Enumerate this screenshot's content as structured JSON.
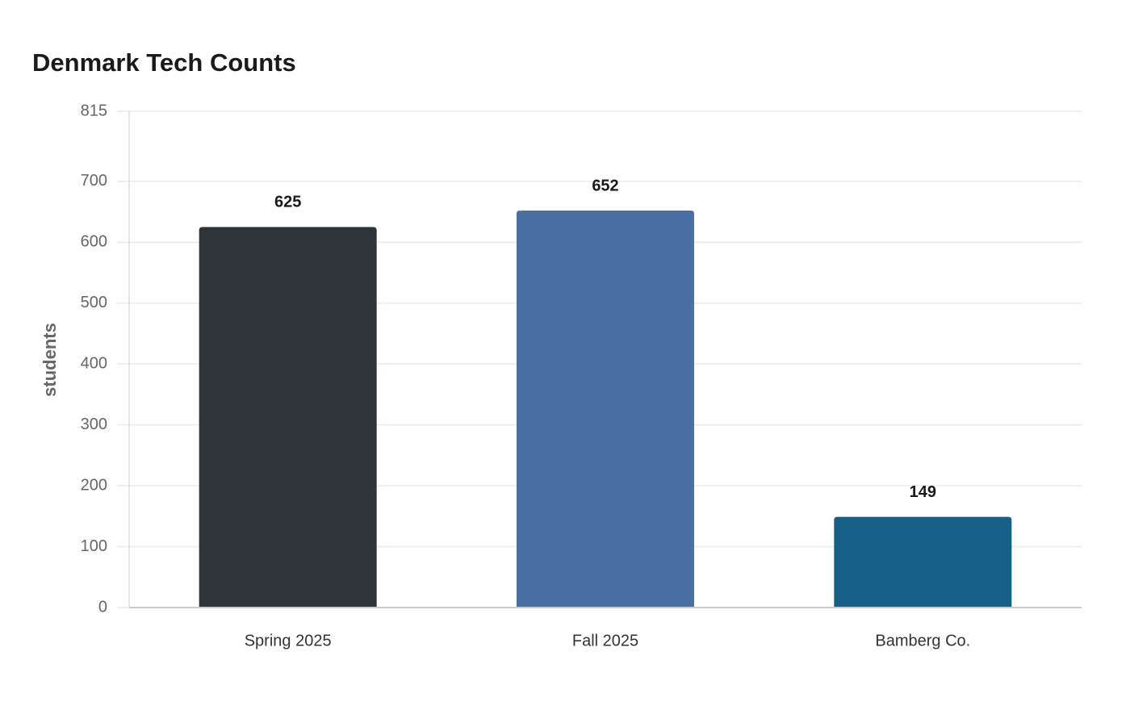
{
  "chart_data": {
    "type": "bar",
    "title": "Denmark Tech Counts",
    "y_label": "students",
    "categories": [
      "Spring 2025",
      "Fall 2025",
      "Bamberg Co."
    ],
    "values": [
      625,
      652,
      149
    ],
    "colors": [
      "#2e3538",
      "#4a6fa5",
      "#166088"
    ],
    "ylim": [
      0,
      815
    ],
    "yticks": [
      0,
      100,
      200,
      300,
      400,
      500,
      600,
      700,
      815
    ],
    "grid": true
  }
}
